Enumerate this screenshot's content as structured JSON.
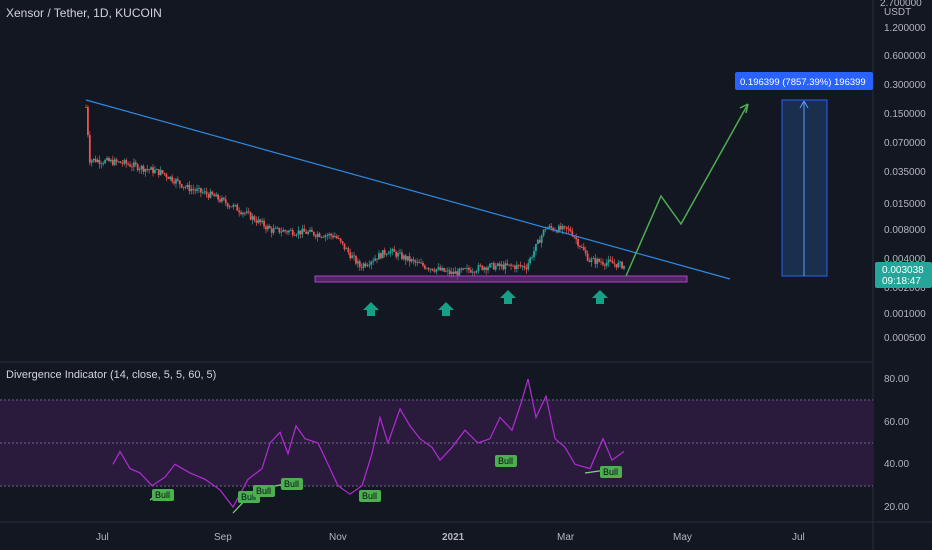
{
  "header": {
    "title": "Xensor / Tether, 1D, KUCOIN"
  },
  "indicator": {
    "title": "Divergence Indicator (14, close, 5, 5, 60, 5)"
  },
  "colors": {
    "background": "#131722",
    "bull_candle": "#26a69a",
    "bear_candle": "#ef5350",
    "trendline": "#2f8ae0",
    "support_zone": "#9c27b0",
    "arrow": "#16a085",
    "projection": "#4caf50",
    "rsi_line": "#b32bd6",
    "rsi_band": "#2a1b3d",
    "bull_badge": "#4caf50",
    "target_box": "#2962ff",
    "price_tag": "#26a69a"
  },
  "chart_data": [
    {
      "type": "candlestick",
      "title": "Xensor / Tether, 1D, KUCOIN",
      "y_scale": "log",
      "y_unit": "USDT",
      "y_ticks": [
        "2.700000",
        "1.200000",
        "0.600000",
        "0.300000",
        "0.150000",
        "0.070000",
        "0.035000",
        "0.015000",
        "0.008000",
        "0.004000",
        "0.002000",
        "0.001000",
        "0.000500"
      ],
      "x_ticks": [
        "Jul",
        "Sep",
        "Nov",
        "2021",
        "Mar",
        "May",
        "Jul"
      ],
      "approx_close_path": [
        {
          "date": "2020-06-20",
          "price": 0.17
        },
        {
          "date": "2020-06-22",
          "price": 0.045
        },
        {
          "date": "2020-07-10",
          "price": 0.041
        },
        {
          "date": "2020-07-30",
          "price": 0.032
        },
        {
          "date": "2020-08-12",
          "price": 0.022
        },
        {
          "date": "2020-08-25",
          "price": 0.018
        },
        {
          "date": "2020-09-10",
          "price": 0.012
        },
        {
          "date": "2020-09-25",
          "price": 0.0075
        },
        {
          "date": "2020-10-10",
          "price": 0.0072
        },
        {
          "date": "2020-10-28",
          "price": 0.0065
        },
        {
          "date": "2020-11-10",
          "price": 0.003
        },
        {
          "date": "2020-11-25",
          "price": 0.0045
        },
        {
          "date": "2020-12-10",
          "price": 0.0032
        },
        {
          "date": "2020-12-28",
          "price": 0.0025
        },
        {
          "date": "2021-01-15",
          "price": 0.003
        },
        {
          "date": "2021-02-05",
          "price": 0.003
        },
        {
          "date": "2021-02-15",
          "price": 0.008
        },
        {
          "date": "2021-02-28",
          "price": 0.0075
        },
        {
          "date": "2021-03-10",
          "price": 0.0035
        },
        {
          "date": "2021-03-20",
          "price": 0.0033
        },
        {
          "date": "2021-03-28",
          "price": 0.003038
        }
      ],
      "current_price": "0.003038",
      "countdown": "09:18:47",
      "target_label": "0.196399 (7857.39%) 196399"
    },
    {
      "type": "line",
      "title": "Divergence Indicator (14, close, 5, 5, 60, 5)",
      "y_ticks": [
        "80.00",
        "60.00",
        "40.00",
        "20.00"
      ],
      "ylim": [
        13,
        87
      ],
      "band": [
        30,
        70
      ],
      "midline": 50,
      "badge_label": "Bull",
      "bull_count": 7
    }
  ]
}
